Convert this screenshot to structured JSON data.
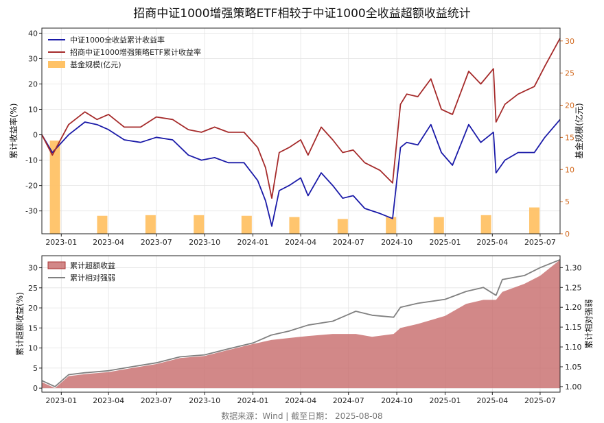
{
  "title": "招商中证1000增强策略ETF相较于中证1000全收益超额收益统计",
  "footer": "数据来源：Wind  |  截至日期： 2025-08-08",
  "colors": {
    "index": "#1a1aa8",
    "etf": "#a52a2a",
    "aum": "#ffc266",
    "excess_fill": "#c76a6a",
    "relative": "#808080",
    "right_axis": "#d2691e"
  },
  "x_ticks": [
    "2023-01",
    "2023-04",
    "2023-07",
    "2023-10",
    "2024-01",
    "2024-04",
    "2024-07",
    "2024-10",
    "2025-01",
    "2025-04",
    "2025-07"
  ],
  "chart_data": [
    {
      "type": "line",
      "ylabel": "累计收益率(%)",
      "y2label": "基金规模(亿元)",
      "ylim": [
        -39,
        42
      ],
      "y2lim": [
        0,
        32
      ],
      "yticks": [
        -30,
        -20,
        -10,
        0,
        10,
        20,
        30,
        40
      ],
      "y2ticks": [
        0,
        5,
        10,
        15,
        20,
        25,
        30
      ],
      "legend_position": "top-left",
      "grid": true,
      "legend": [
        "中证1000全收益累计收益率",
        "招商中证1000增强策略ETF累计收益率",
        "基金规模(亿元)"
      ],
      "series": [
        {
          "name": "中证1000全收益累计收益率",
          "x": [
            "2022-11-25",
            "2022-12-15",
            "2023-01-15",
            "2023-02-15",
            "2023-03-10",
            "2023-04-01",
            "2023-05-01",
            "2023-06-01",
            "2023-07-01",
            "2023-08-01",
            "2023-08-31",
            "2023-09-25",
            "2023-10-20",
            "2023-11-15",
            "2023-12-15",
            "2024-01-10",
            "2024-01-25",
            "2024-02-06",
            "2024-02-20",
            "2024-03-10",
            "2024-04-01",
            "2024-04-15",
            "2024-05-10",
            "2024-06-01",
            "2024-06-20",
            "2024-07-10",
            "2024-08-01",
            "2024-08-30",
            "2024-09-23",
            "2024-10-08",
            "2024-10-20",
            "2024-11-10",
            "2024-12-05",
            "2024-12-25",
            "2025-01-15",
            "2025-02-15",
            "2025-03-10",
            "2025-04-03",
            "2025-04-08",
            "2025-04-25",
            "2025-05-20",
            "2025-06-20",
            "2025-07-10",
            "2025-08-08"
          ],
          "values": [
            0,
            -7,
            0,
            5,
            4,
            2,
            -2,
            -3,
            -1,
            -2,
            -8,
            -10,
            -9,
            -11,
            -11,
            -18,
            -26,
            -36,
            -22,
            -20,
            -17,
            -24,
            -15,
            -20,
            -25,
            -24,
            -29,
            -31,
            -33,
            -5,
            -3,
            -4,
            4,
            -7,
            -12,
            4,
            -3,
            1,
            -15,
            -10,
            -7,
            -7,
            -1,
            6
          ]
        },
        {
          "name": "招商中证1000增强策略ETF累计收益率",
          "x": [
            "2022-11-25",
            "2022-12-15",
            "2023-01-15",
            "2023-02-15",
            "2023-03-10",
            "2023-04-01",
            "2023-05-01",
            "2023-06-01",
            "2023-07-01",
            "2023-08-01",
            "2023-08-31",
            "2023-09-25",
            "2023-10-20",
            "2023-11-15",
            "2023-12-15",
            "2024-01-10",
            "2024-01-25",
            "2024-02-06",
            "2024-02-20",
            "2024-03-10",
            "2024-04-01",
            "2024-04-15",
            "2024-05-10",
            "2024-06-01",
            "2024-06-20",
            "2024-07-10",
            "2024-08-01",
            "2024-08-30",
            "2024-09-23",
            "2024-10-08",
            "2024-10-20",
            "2024-11-10",
            "2024-12-05",
            "2024-12-25",
            "2025-01-15",
            "2025-02-15",
            "2025-03-10",
            "2025-04-03",
            "2025-04-08",
            "2025-04-25",
            "2025-05-20",
            "2025-06-20",
            "2025-07-10",
            "2025-08-08"
          ],
          "values": [
            0,
            -8,
            4,
            9,
            6,
            8,
            3,
            3,
            7,
            6,
            2,
            1,
            3,
            1,
            1,
            -5,
            -13,
            -25,
            -7,
            -5,
            -2,
            -8,
            3,
            -2,
            -7,
            -6,
            -11,
            -14,
            -19,
            12,
            16,
            15,
            22,
            10,
            8,
            25,
            20,
            26,
            5,
            12,
            16,
            19,
            27,
            38
          ]
        }
      ],
      "aum_bars": {
        "name": "基金规模(亿元)",
        "x": [
          "2022-12-20",
          "2023-03-20",
          "2023-06-20",
          "2023-09-20",
          "2023-12-20",
          "2024-03-20",
          "2024-06-20",
          "2024-09-20",
          "2024-12-20",
          "2025-03-20",
          "2025-06-20"
        ],
        "values": [
          14.5,
          2.8,
          2.9,
          2.9,
          2.8,
          2.6,
          2.3,
          2.6,
          2.6,
          2.9,
          4.1
        ]
      }
    },
    {
      "type": "area",
      "ylabel": "累计超额收益(%)",
      "y2label": "累计相对强弱",
      "ylim": [
        -1,
        33
      ],
      "y2lim": [
        0.986,
        1.33
      ],
      "yticks": [
        0,
        5,
        10,
        15,
        20,
        25,
        30
      ],
      "y2ticks": [
        1.0,
        1.05,
        1.1,
        1.15,
        1.2,
        1.25,
        1.3
      ],
      "legend_position": "top-left",
      "grid": true,
      "legend": [
        "累计超额收益",
        "累计相对强弱"
      ],
      "series": [
        {
          "name": "累计超额收益",
          "x": [
            "2022-11-25",
            "2022-12-20",
            "2023-01-15",
            "2023-02-15",
            "2023-04-01",
            "2023-05-15",
            "2023-07-01",
            "2023-08-15",
            "2023-10-01",
            "2023-11-15",
            "2024-01-01",
            "2024-02-05",
            "2024-03-10",
            "2024-04-15",
            "2024-06-01",
            "2024-07-15",
            "2024-08-15",
            "2024-09-25",
            "2024-10-08",
            "2024-11-10",
            "2025-01-01",
            "2025-02-10",
            "2025-03-15",
            "2025-04-08",
            "2025-04-20",
            "2025-06-01",
            "2025-07-01",
            "2025-08-08"
          ],
          "values": [
            1.5,
            0,
            3,
            3.5,
            4,
            5,
            6,
            7.5,
            8,
            9.5,
            11,
            12,
            12.5,
            13,
            13.5,
            13.5,
            12.8,
            13.5,
            15,
            16,
            18,
            21,
            22,
            22,
            24,
            26,
            28,
            32
          ]
        },
        {
          "name": "累计相对强弱",
          "x": [
            "2022-11-25",
            "2022-12-20",
            "2023-01-15",
            "2023-02-15",
            "2023-04-01",
            "2023-05-15",
            "2023-07-01",
            "2023-08-15",
            "2023-10-01",
            "2023-11-15",
            "2024-01-01",
            "2024-02-05",
            "2024-03-10",
            "2024-04-15",
            "2024-06-01",
            "2024-07-15",
            "2024-08-15",
            "2024-09-25",
            "2024-10-08",
            "2024-11-10",
            "2025-01-01",
            "2025-02-10",
            "2025-03-15",
            "2025-04-08",
            "2025-04-20",
            "2025-06-01",
            "2025-07-01",
            "2025-08-08"
          ],
          "values": [
            1.015,
            1.0,
            1.03,
            1.035,
            1.04,
            1.05,
            1.06,
            1.075,
            1.08,
            1.095,
            1.11,
            1.13,
            1.14,
            1.155,
            1.165,
            1.19,
            1.18,
            1.175,
            1.2,
            1.21,
            1.22,
            1.24,
            1.25,
            1.23,
            1.27,
            1.28,
            1.3,
            1.32
          ]
        }
      ]
    }
  ]
}
